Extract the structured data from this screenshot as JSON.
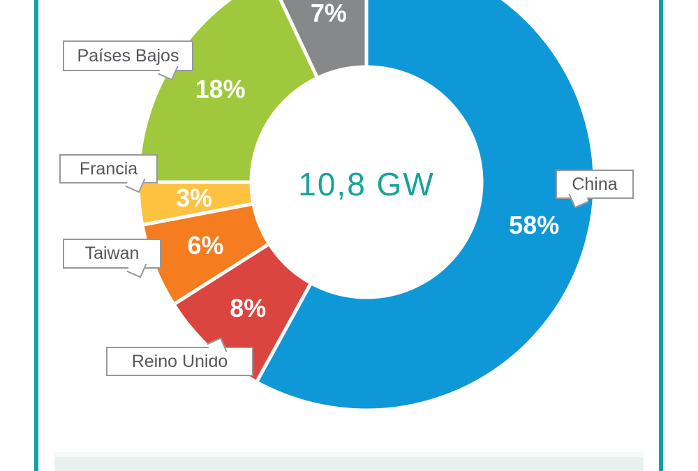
{
  "page": {
    "background_color": "#ffffff",
    "accent_line_color": "#149fa8",
    "bottom_panel_color": "#e8f1f0",
    "bottom_panel_top_strip_color": "#f5f9f8",
    "callout_border_color": "#96989b",
    "callout_text_color": "#55565a"
  },
  "chart_data": {
    "type": "pie",
    "subtype": "donut",
    "direction": "clockwise",
    "start_angle_deg": 0,
    "center_label": "10,8 GW",
    "center_label_color": "#16a498",
    "legend_position": "callouts",
    "segments": [
      {
        "label": "China",
        "percent": 58,
        "percent_label": "58%",
        "color": "#0f98d8",
        "label_visible": true
      },
      {
        "label": "Reino Unido",
        "percent": 8,
        "percent_label": "8%",
        "color": "#da453f",
        "label_visible": true
      },
      {
        "label": "Taiwan",
        "percent": 6,
        "percent_label": "6%",
        "color": "#f57d20",
        "label_visible": true
      },
      {
        "label": "Francia",
        "percent": 3,
        "percent_label": "3%",
        "color": "#fcc240",
        "label_visible": true
      },
      {
        "label": "Países Bajos",
        "percent": 18,
        "percent_label": "18%",
        "color": "#a0c83c",
        "label_visible": true
      },
      {
        "label": "",
        "percent": 7,
        "percent_label": "7%",
        "color": "#87888a",
        "label_visible": false
      }
    ]
  }
}
